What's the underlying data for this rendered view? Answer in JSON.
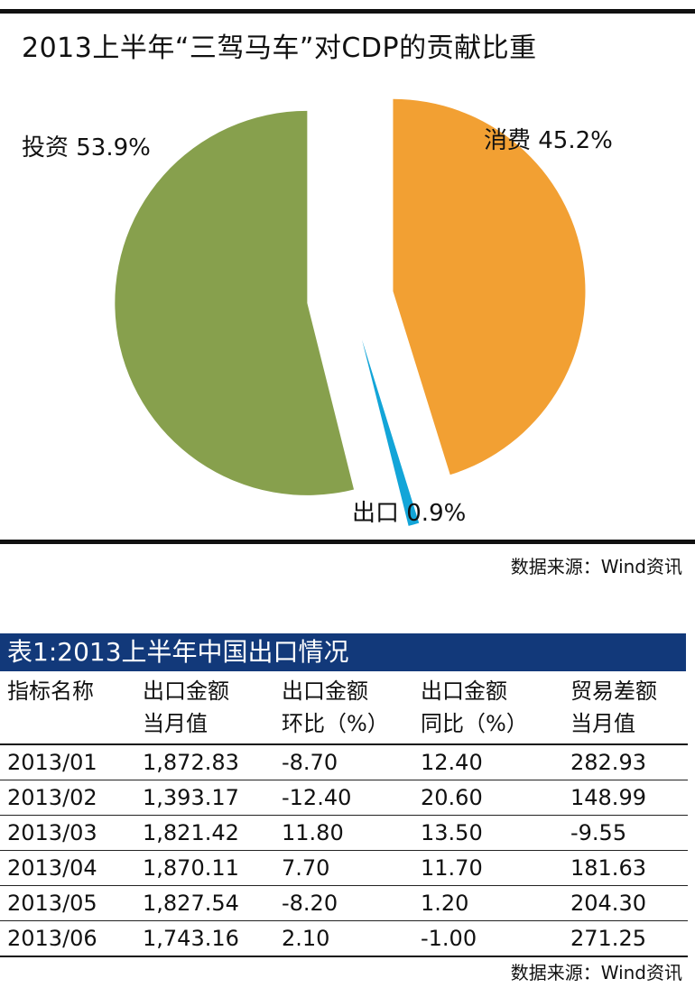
{
  "title": "2013上半年“三驾马车”对CDP的贡献比重",
  "source_top": "数据来源：Wind资讯",
  "chart_data": {
    "type": "pie",
    "title": "2013上半年“三驾马车”对CDP的贡献比重",
    "slices": [
      {
        "label": "消费",
        "value": 45.2,
        "display": "消费 45.2%",
        "color": "#f2a033"
      },
      {
        "label": "出口",
        "value": 0.9,
        "display": "出口 0.9%",
        "color": "#13a5d8"
      },
      {
        "label": "投资",
        "value": 53.9,
        "display": "投资 53.9%",
        "color": "#87a04d"
      }
    ],
    "exploded": true,
    "legend": "none"
  },
  "table": {
    "title": "表1:2013上半年中国出口情况",
    "headers": [
      [
        "指标名称",
        ""
      ],
      [
        "出口金额",
        "当月值"
      ],
      [
        "出口金额",
        "环比（%）"
      ],
      [
        "出口金额",
        "同比（%）"
      ],
      [
        "贸易差额",
        "当月值"
      ]
    ],
    "rows": [
      [
        "2013/01",
        "1,872.83",
        "-8.70",
        "12.40",
        "282.93"
      ],
      [
        "2013/02",
        "1,393.17",
        "-12.40",
        "20.60",
        "148.99"
      ],
      [
        "2013/03",
        "1,821.42",
        "11.80",
        "13.50",
        "-9.55"
      ],
      [
        "2013/04",
        "1,870.11",
        "7.70",
        "11.70",
        "181.63"
      ],
      [
        "2013/05",
        "1,827.54",
        "-8.20",
        "1.20",
        "204.30"
      ],
      [
        "2013/06",
        "1,743.16",
        "2.10",
        "-1.00",
        "271.25"
      ]
    ],
    "source": "数据来源：Wind资讯"
  }
}
